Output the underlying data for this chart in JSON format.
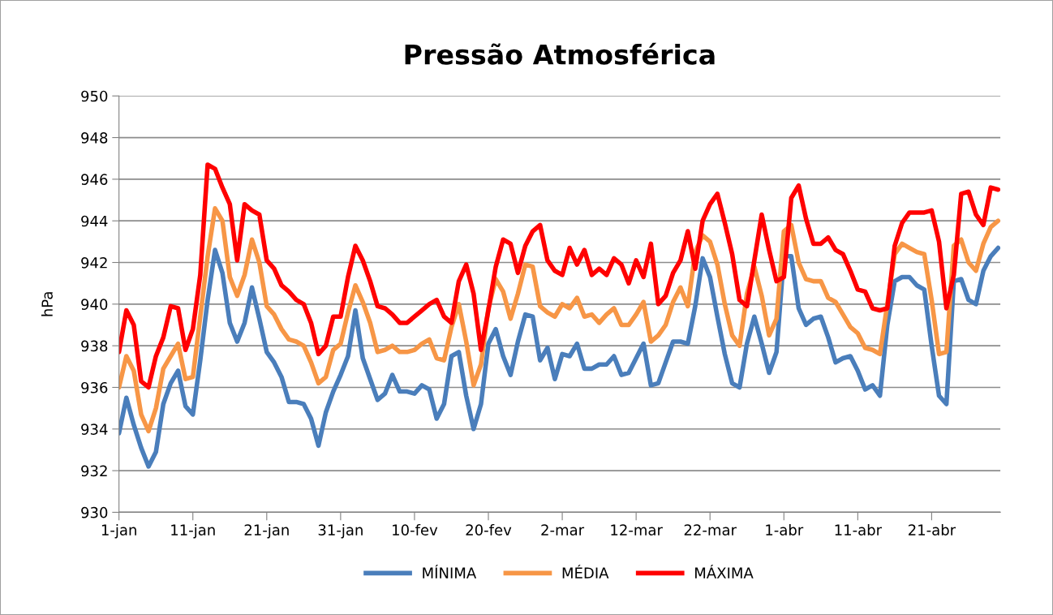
{
  "chart_data": {
    "type": "line",
    "title": "Pressão Atmosférica",
    "ylabel": "hPa",
    "categories": [
      "1-jan",
      null,
      null,
      null,
      null,
      null,
      null,
      null,
      null,
      null,
      "11-jan",
      null,
      null,
      null,
      null,
      null,
      null,
      null,
      null,
      null,
      "21-jan",
      null,
      null,
      null,
      null,
      null,
      null,
      null,
      null,
      null,
      "31-jan",
      null,
      null,
      null,
      null,
      null,
      null,
      null,
      null,
      null,
      "10-fev",
      null,
      null,
      null,
      null,
      null,
      null,
      null,
      null,
      null,
      "20-fev",
      null,
      null,
      null,
      null,
      null,
      null,
      null,
      null,
      null,
      "2-mar",
      null,
      null,
      null,
      null,
      null,
      null,
      null,
      null,
      null,
      "12-mar",
      null,
      null,
      null,
      null,
      null,
      null,
      null,
      null,
      null,
      "22-mar",
      null,
      null,
      null,
      null,
      null,
      null,
      null,
      null,
      null,
      "1-abr",
      null,
      null,
      null,
      null,
      null,
      null,
      null,
      null,
      null,
      "11-abr",
      null,
      null,
      null,
      null,
      null,
      null,
      null,
      null,
      null,
      "21-abr",
      null,
      null,
      null,
      null,
      null,
      null,
      null,
      null,
      null
    ],
    "series": [
      {
        "name": "MÍNIMA",
        "color": "#4a7ebb",
        "values": [
          933.8,
          935.5,
          934.2,
          933.1,
          932.2,
          932.9,
          935.2,
          936.2,
          936.8,
          935.1,
          934.7,
          937.3,
          940.2,
          942.6,
          941.5,
          939.1,
          938.2,
          939.1,
          940.8,
          939.3,
          937.7,
          937.2,
          936.5,
          935.3,
          935.3,
          935.2,
          934.5,
          933.2,
          934.8,
          935.8,
          936.6,
          937.5,
          939.7,
          937.4,
          936.4,
          935.4,
          935.7,
          936.6,
          935.8,
          935.8,
          935.7,
          936.1,
          935.9,
          934.5,
          935.2,
          937.5,
          937.7,
          935.6,
          934.0,
          935.2,
          938.1,
          938.8,
          937.5,
          936.6,
          938.2,
          939.5,
          939.4,
          937.3,
          937.9,
          936.4,
          937.6,
          937.5,
          938.1,
          936.9,
          936.9,
          937.1,
          937.1,
          937.5,
          936.6,
          936.7,
          937.4,
          938.1,
          936.1,
          936.2,
          937.2,
          938.2,
          938.2,
          938.1,
          939.9,
          942.2,
          941.3,
          939.4,
          937.6,
          936.2,
          936.0,
          938.1,
          939.4,
          938.1,
          936.7,
          937.7,
          942.3,
          942.3,
          939.8,
          939.0,
          939.3,
          939.4,
          938.4,
          937.2,
          937.4,
          937.5,
          936.8,
          935.9,
          936.1,
          935.6,
          939.0,
          941.1,
          941.3,
          941.3,
          940.9,
          940.7,
          938.0,
          935.6,
          935.2,
          941.1,
          941.2,
          940.2,
          940.0,
          941.6,
          942.3,
          942.7
        ]
      },
      {
        "name": "MÉDIA",
        "color": "#f79646",
        "values": [
          936.0,
          937.5,
          936.8,
          934.7,
          933.9,
          935.0,
          936.9,
          937.5,
          938.1,
          936.4,
          936.5,
          939.4,
          942.3,
          944.6,
          944.0,
          941.3,
          940.4,
          941.4,
          943.1,
          942.0,
          939.9,
          939.5,
          938.8,
          938.3,
          938.2,
          938.0,
          937.2,
          936.2,
          936.5,
          937.8,
          938.1,
          939.6,
          940.9,
          940.1,
          939.1,
          937.7,
          937.8,
          938.0,
          937.7,
          937.7,
          937.8,
          938.1,
          938.3,
          937.4,
          937.3,
          938.9,
          940.0,
          938.2,
          936.1,
          937.1,
          939.8,
          941.2,
          940.6,
          939.3,
          940.5,
          941.9,
          941.8,
          939.9,
          939.6,
          939.4,
          940.0,
          939.8,
          940.3,
          939.4,
          939.5,
          939.1,
          939.5,
          939.8,
          939.0,
          939.0,
          939.5,
          940.1,
          938.2,
          938.5,
          939.0,
          940.1,
          940.8,
          939.9,
          942.5,
          943.3,
          943.0,
          941.9,
          940.0,
          938.5,
          938.0,
          940.5,
          941.8,
          940.4,
          938.5,
          939.3,
          943.5,
          943.8,
          942.0,
          941.2,
          941.1,
          941.1,
          940.3,
          940.1,
          939.5,
          938.9,
          938.6,
          937.9,
          937.8,
          937.6,
          940.0,
          942.4,
          942.9,
          942.7,
          942.5,
          942.4,
          940.2,
          937.6,
          937.7,
          942.8,
          943.1,
          942.0,
          941.6,
          942.9,
          943.7,
          944.0
        ]
      },
      {
        "name": "MÁXIMA",
        "color": "#ff0000",
        "values": [
          937.7,
          939.7,
          939.0,
          936.3,
          936.0,
          937.5,
          938.4,
          939.9,
          939.8,
          937.8,
          938.8,
          941.4,
          946.7,
          946.5,
          945.6,
          944.8,
          942.1,
          944.8,
          944.5,
          944.3,
          942.1,
          941.7,
          940.9,
          940.6,
          940.2,
          940.0,
          939.1,
          937.6,
          938.0,
          939.4,
          939.4,
          941.3,
          942.8,
          942.1,
          941.1,
          939.9,
          939.8,
          939.5,
          939.1,
          939.1,
          939.4,
          939.7,
          940.0,
          940.2,
          939.4,
          939.1,
          941.1,
          941.9,
          940.5,
          937.8,
          939.7,
          941.8,
          943.1,
          942.9,
          941.5,
          942.8,
          943.5,
          943.8,
          942.1,
          941.6,
          941.4,
          942.7,
          941.9,
          942.6,
          941.4,
          941.7,
          941.4,
          942.2,
          941.9,
          941.0,
          942.1,
          941.3,
          942.9,
          940.0,
          940.4,
          941.5,
          942.1,
          943.5,
          941.7,
          944.0,
          944.8,
          945.3,
          943.9,
          942.4,
          940.2,
          939.9,
          942.1,
          944.3,
          942.6,
          941.1,
          941.3,
          945.1,
          945.7,
          944.1,
          942.9,
          942.9,
          943.2,
          942.6,
          942.4,
          941.6,
          940.7,
          940.6,
          939.8,
          939.7,
          939.8,
          942.8,
          943.9,
          944.4,
          944.4,
          944.4,
          944.5,
          943.0,
          939.8,
          941.4,
          945.3,
          945.4,
          944.3,
          943.8,
          945.6,
          945.5
        ]
      }
    ],
    "ylim": [
      930,
      950
    ],
    "yticks": [
      930,
      932,
      934,
      936,
      938,
      940,
      942,
      944,
      946,
      948,
      950
    ],
    "grid": "y",
    "legend": "bottom",
    "marker": "none",
    "line_style": "solid"
  }
}
